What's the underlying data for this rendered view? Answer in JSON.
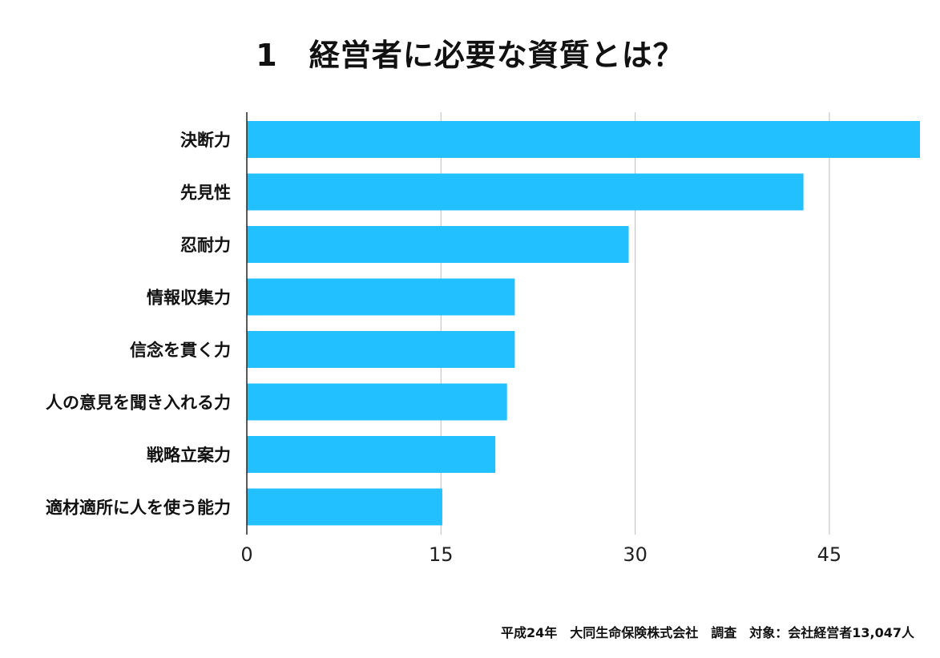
{
  "chart_data": {
    "type": "bar",
    "orientation": "horizontal",
    "title": "1　経営者に必要な資質とは？",
    "categories": [
      "決断力",
      "先見性",
      "忍耐力",
      "情報収集力",
      "信念を貫く力",
      "人の意見を聞き入れる力",
      "戦略立案力",
      "適材適所に人を使う能力"
    ],
    "values": [
      52,
      43,
      29.5,
      20.7,
      20.7,
      20.1,
      19.2,
      15.1
    ],
    "xlim": [
      0,
      52
    ],
    "xticks": [
      0,
      15,
      30,
      45
    ],
    "grid": true,
    "bar_color": "#22C0FF",
    "note": "平成24年　大同生命保険株式会社　調査　対象：会社経営者13,047人"
  }
}
